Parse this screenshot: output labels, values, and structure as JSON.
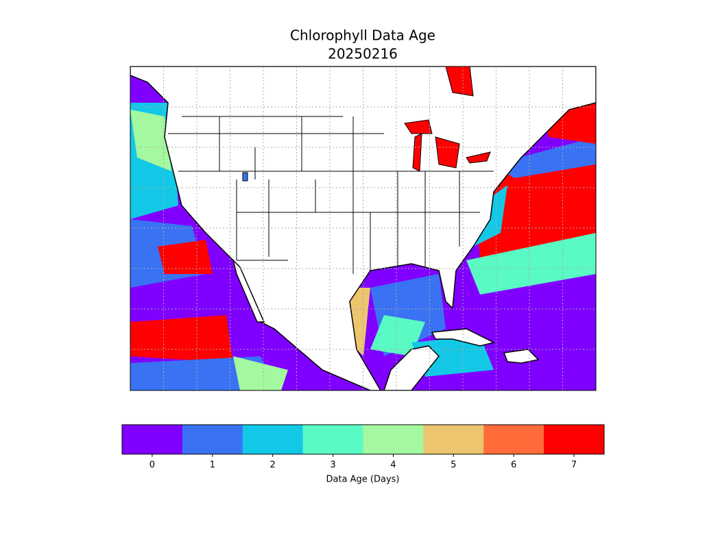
{
  "map": {
    "title": "Chlorophyll Data Age",
    "date": "20250216",
    "colorbar": {
      "label": "Data Age (Days)",
      "ticks": [
        0,
        1,
        2,
        3,
        4,
        5,
        6,
        7
      ],
      "colors": [
        "#8000ff",
        "#3a72f4",
        "#12c8e6",
        "#5afac4",
        "#a4f89f",
        "#ecc56e",
        "#ff6b39",
        "#ff0000"
      ]
    }
  }
}
